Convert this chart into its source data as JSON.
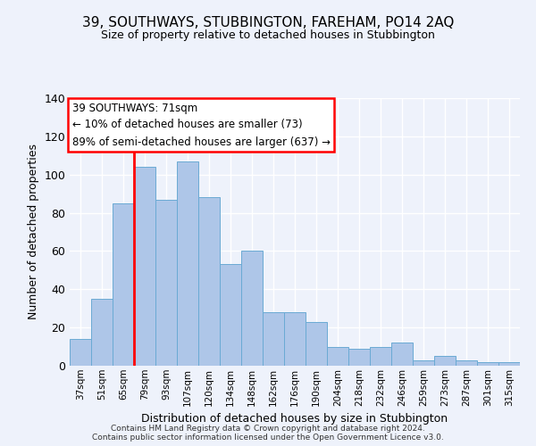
{
  "title": "39, SOUTHWAYS, STUBBINGTON, FAREHAM, PO14 2AQ",
  "subtitle": "Size of property relative to detached houses in Stubbington",
  "xlabel": "Distribution of detached houses by size in Stubbington",
  "ylabel": "Number of detached properties",
  "categories": [
    "37sqm",
    "51sqm",
    "65sqm",
    "79sqm",
    "93sqm",
    "107sqm",
    "120sqm",
    "134sqm",
    "148sqm",
    "162sqm",
    "176sqm",
    "190sqm",
    "204sqm",
    "218sqm",
    "232sqm",
    "246sqm",
    "259sqm",
    "273sqm",
    "287sqm",
    "301sqm",
    "315sqm"
  ],
  "values": [
    14,
    35,
    85,
    104,
    87,
    107,
    88,
    53,
    60,
    28,
    28,
    23,
    10,
    9,
    10,
    12,
    3,
    5,
    3,
    2,
    2
  ],
  "bar_color": "#aec6e8",
  "bar_edge_color": "#6aaad4",
  "vline_index": 2.5,
  "vline_color": "red",
  "annotation_text": "39 SOUTHWAYS: 71sqm\n← 10% of detached houses are smaller (73)\n89% of semi-detached houses are larger (637) →",
  "annotation_box_facecolor": "white",
  "annotation_box_edgecolor": "red",
  "ylim": [
    0,
    140
  ],
  "yticks": [
    0,
    20,
    40,
    60,
    80,
    100,
    120,
    140
  ],
  "background_color": "#eef2fb",
  "grid_color": "white",
  "footer": "Contains HM Land Registry data © Crown copyright and database right 2024.\nContains public sector information licensed under the Open Government Licence v3.0."
}
